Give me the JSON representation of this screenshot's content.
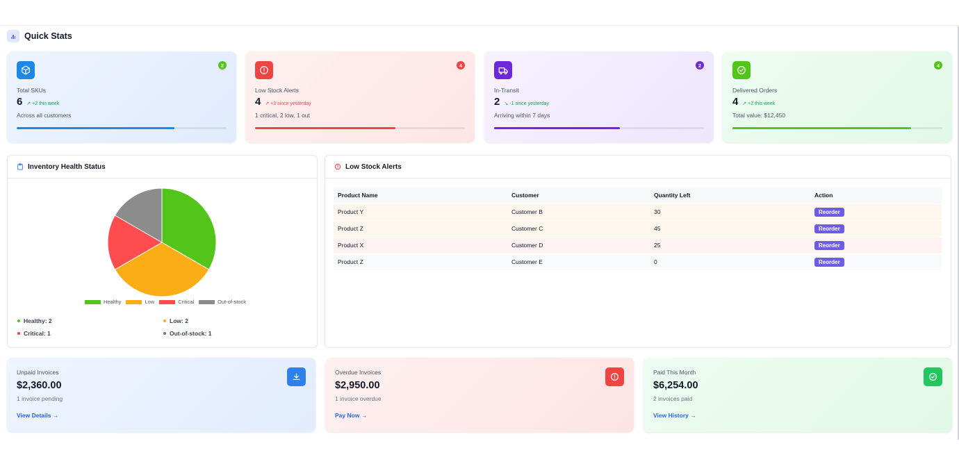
{
  "quick_stats": {
    "title": "Quick Stats",
    "cards": [
      {
        "label": "Total SKUs",
        "value": "6",
        "trend": "+2 this week",
        "trend_direction": "up",
        "subtitle": "Across all customers",
        "badge": "2",
        "progress": 0.75,
        "icon": "box-icon",
        "accent": "#1e88e5",
        "badge_color": "#52c41a",
        "trend_color": "#16a34a",
        "bg": "linear-gradient(135deg,#edf4ff,#e0ebfd)"
      },
      {
        "label": "Low Stock Alerts",
        "value": "4",
        "trend": "+3 since yesterday",
        "trend_direction": "up",
        "subtitle": "1 critical, 2 low, 1 out",
        "badge": "4",
        "progress": 0.67,
        "icon": "alert-circle-icon",
        "accent": "#ef4444",
        "badge_color": "#ef4444",
        "trend_color": "#ef4444",
        "bg": "linear-gradient(135deg,#fff0f0,#fde5e5)"
      },
      {
        "label": "In-Transit",
        "value": "2",
        "trend": "-1 since yesterday",
        "trend_direction": "down",
        "subtitle": "Arriving within 7 days",
        "badge": "2",
        "progress": 0.6,
        "icon": "truck-icon",
        "accent": "#6d28d9",
        "badge_color": "#6d28d9",
        "trend_color": "#16a34a",
        "bg": "linear-gradient(135deg,#f7f1ff,#eee6fd)"
      },
      {
        "label": "Delivered Orders",
        "value": "4",
        "trend": "+2 this week",
        "trend_direction": "up",
        "subtitle": "Total value: $12,450",
        "badge": "4",
        "progress": 0.85,
        "icon": "check-circle-icon",
        "accent": "#52c41a",
        "badge_color": "#52c41a",
        "trend_color": "#16a34a",
        "bg": "linear-gradient(135deg,#eefdf2,#e2f8e7)"
      }
    ]
  },
  "inventory_health": {
    "title": "Inventory Health Status",
    "summary": {
      "healthy": "Healthy: 2",
      "low": "Low: 2",
      "critical": "Critical: 1",
      "out_of_stock": "Out-of-stock: 1"
    }
  },
  "chart_data": {
    "type": "pie",
    "categories": [
      "Healthy",
      "Low",
      "Critical",
      "Out-of-stock"
    ],
    "values": [
      2,
      2,
      1,
      1
    ],
    "colors": [
      "#52c41a",
      "#faad14",
      "#ff4d4f",
      "#8c8c8c"
    ],
    "legend_position": "bottom"
  },
  "low_stock_alerts": {
    "title": "Low Stock Alerts",
    "columns": [
      "Product Name",
      "Customer",
      "Quantity Left",
      "Action"
    ],
    "rows": [
      {
        "product": "Product Y",
        "customer": "Customer B",
        "qty": "30",
        "action": "Reorder",
        "bg": "#fff7ed"
      },
      {
        "product": "Product Z",
        "customer": "Customer C",
        "qty": "45",
        "action": "Reorder",
        "bg": "#fff7ed"
      },
      {
        "product": "Product X",
        "customer": "Customer D",
        "qty": "25",
        "action": "Reorder",
        "bg": "#fef2f2"
      },
      {
        "product": "Product Z",
        "customer": "Customer E",
        "qty": "0",
        "action": "Reorder",
        "bg": "#f9fafb"
      }
    ]
  },
  "invoices": [
    {
      "label": "Unpaid Invoices",
      "amount": "$2,360.00",
      "subtitle": "1 invoice pending",
      "link": "View Details →",
      "icon": "download-icon",
      "icon_color": "#2f80ed",
      "bg": "linear-gradient(135deg,#eef5ff,#e1ecfd)"
    },
    {
      "label": "Overdue Invoices",
      "amount": "$2,950.00",
      "subtitle": "1 invoice overdue",
      "link": "Pay Now →",
      "icon": "alert-circle-icon",
      "icon_color": "#ef4444",
      "bg": "linear-gradient(135deg,#fff0f0,#fde4e4)"
    },
    {
      "label": "Paid This Month",
      "amount": "$6,254.00",
      "subtitle": "2 invoices paid",
      "link": "View History →",
      "icon": "check-circle-icon",
      "icon_color": "#22c55e",
      "bg": "linear-gradient(135deg,#eefdf2,#e2f8e6)"
    }
  ]
}
